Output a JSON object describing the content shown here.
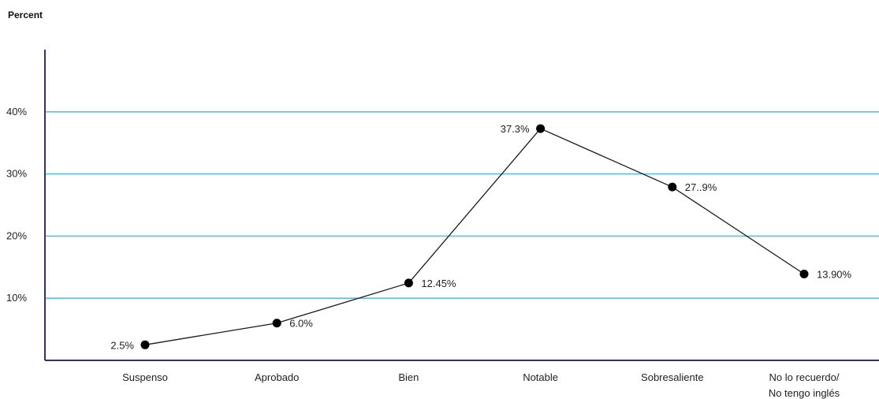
{
  "chart_data": {
    "type": "line",
    "title": "",
    "ylabel": "Percent",
    "xlabel": "",
    "categories": [
      "Suspenso",
      "Aprobado",
      "Bien",
      "Notable",
      "Sobresaliente",
      "No lo recuerdo/\nNo tengo inglés"
    ],
    "values": [
      2.5,
      6.0,
      12.45,
      37.3,
      27.9,
      13.9
    ],
    "data_labels": [
      "2.5%",
      "6.0%",
      "12.45%",
      "37.3%",
      "27..9%",
      "13.90%"
    ],
    "ylim": [
      0,
      50
    ],
    "yticks": [
      10,
      20,
      30,
      40
    ],
    "ytick_labels": [
      "10%",
      "20%",
      "30%",
      "40%"
    ],
    "grid": true,
    "legend": "none",
    "colors": {
      "grid": "#5bbfe6",
      "axis": "#3a2f6b",
      "line": "#1a1a1a",
      "marker": "#000000"
    }
  }
}
